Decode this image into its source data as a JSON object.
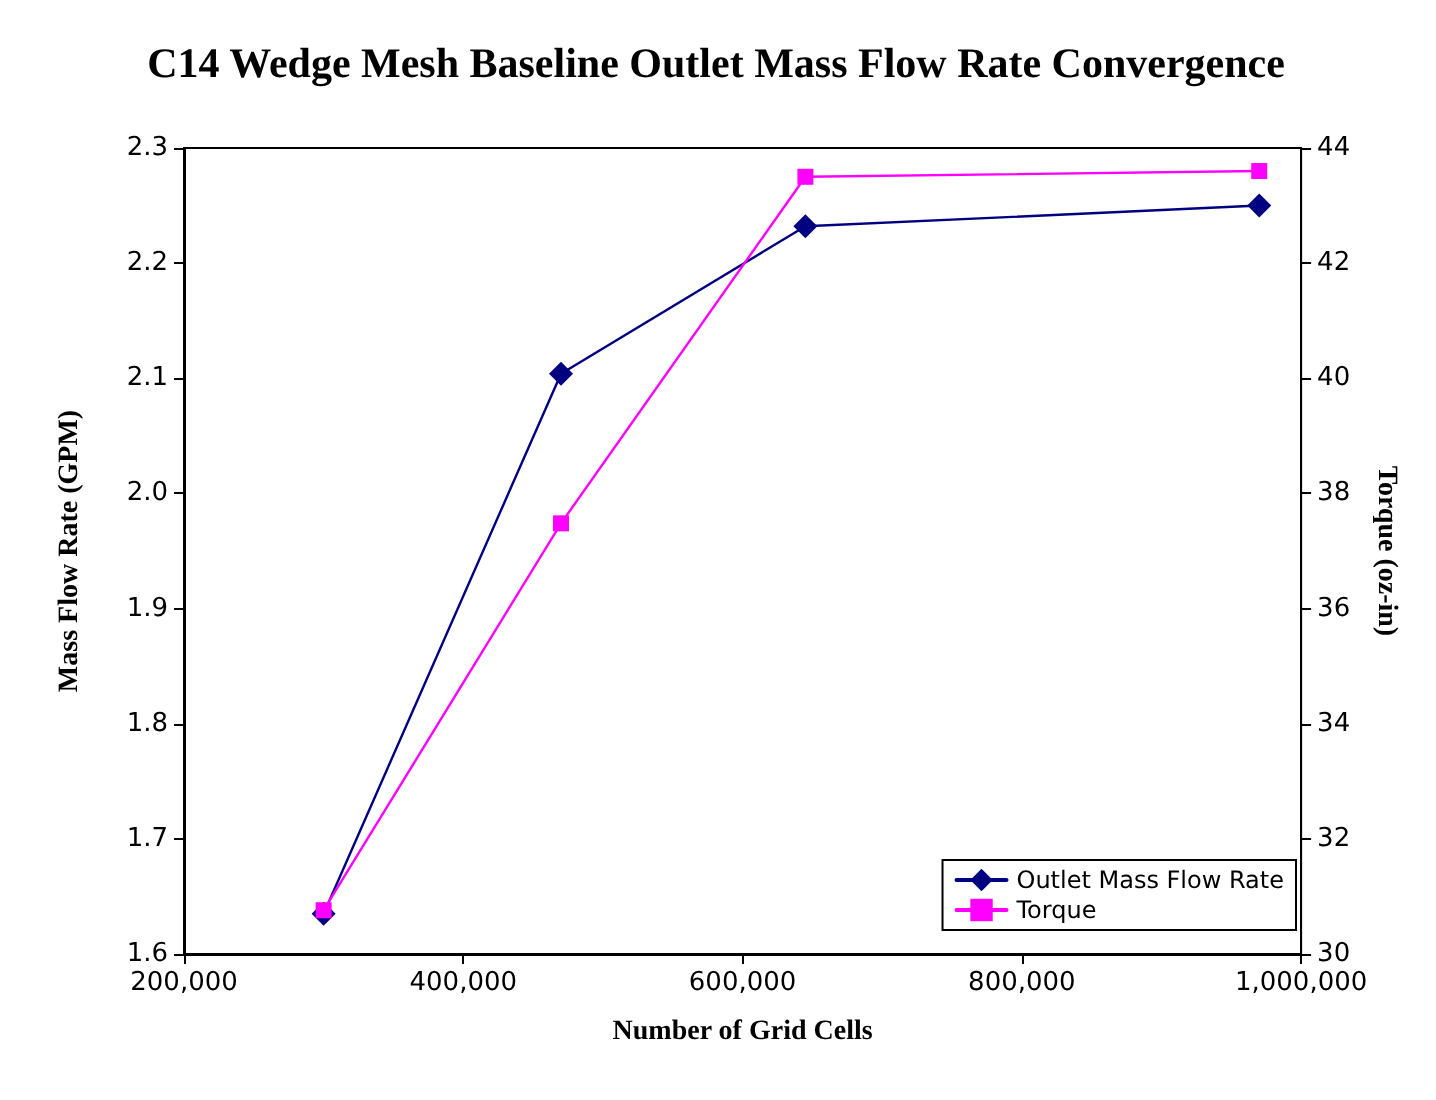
{
  "chart_data": {
    "type": "line",
    "title": "C14 Wedge Mesh Baseline Outlet Mass Flow Rate Convergence",
    "xlabel": "Number of Grid Cells",
    "ylabel": "Mass Flow Rate (GPM)",
    "y2label": "Torque (oz-in)",
    "x": [
      300000,
      470000,
      645000,
      970000
    ],
    "series": [
      {
        "name": "Outlet Mass Flow Rate",
        "color": "#000080",
        "marker": "diamond",
        "values": [
          1.635,
          2.104,
          2.232,
          2.25
        ]
      },
      {
        "name": "Torque",
        "color": "#ff00ff",
        "marker": "square",
        "axis": "y2",
        "values": [
          30.76,
          37.48,
          43.5,
          43.6
        ]
      }
    ],
    "xlim": [
      200000,
      1000000
    ],
    "xticks": [
      {
        "value": 200000,
        "label": "200,000"
      },
      {
        "value": 400000,
        "label": "400,000"
      },
      {
        "value": 600000,
        "label": "600,000"
      },
      {
        "value": 800000,
        "label": "800,000"
      },
      {
        "value": 1000000,
        "label": "1,000,000"
      }
    ],
    "ylim": [
      1.6,
      2.3
    ],
    "yticks": [
      1.6,
      1.7,
      1.8,
      1.9,
      {
        "value": 2,
        "label": "2.0"
      },
      2.1,
      2.2,
      2.3
    ],
    "y2lim": [
      30,
      44
    ],
    "y2ticks": [
      30,
      32,
      34,
      36,
      38,
      40,
      42,
      44
    ],
    "grid": false,
    "legend": "bottom right",
    "line_style": "solid"
  }
}
